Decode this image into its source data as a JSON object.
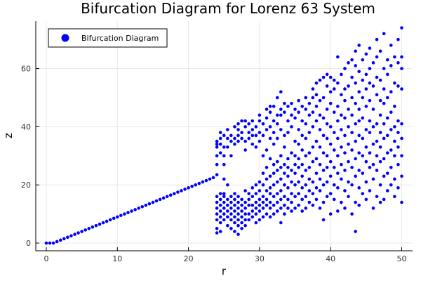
{
  "chart_data": {
    "type": "scatter",
    "title": "Bifurcation Diagram for Lorenz 63 System",
    "xlabel": "r",
    "ylabel": "z",
    "xlim": [
      -1.5,
      51.5
    ],
    "ylim": [
      -2.5,
      76
    ],
    "xticks": [
      "0",
      "10",
      "20",
      "30",
      "40",
      "50"
    ],
    "yticks": [
      "0",
      "20",
      "40",
      "60"
    ],
    "grid": true,
    "legend_position": "top-left",
    "series": [
      {
        "name": "Bifurcation Diagram",
        "color": "#0000ff",
        "marker": "circle",
        "linear_points": [
          [
            0,
            0
          ],
          [
            0.5,
            0
          ],
          [
            1,
            0
          ],
          [
            1.5,
            0.5
          ],
          [
            2,
            1
          ],
          [
            2.5,
            1.5
          ],
          [
            3,
            2
          ],
          [
            3.5,
            2.5
          ],
          [
            4,
            3
          ],
          [
            4.5,
            3.5
          ],
          [
            5,
            4
          ],
          [
            5.5,
            4.5
          ],
          [
            6,
            5
          ],
          [
            6.5,
            5.5
          ],
          [
            7,
            6
          ],
          [
            7.5,
            6.5
          ],
          [
            8,
            7
          ],
          [
            8.5,
            7.5
          ],
          [
            9,
            8
          ],
          [
            9.5,
            8.5
          ],
          [
            10,
            9
          ],
          [
            10.5,
            9.5
          ],
          [
            11,
            10
          ],
          [
            11.5,
            10.5
          ],
          [
            12,
            11
          ],
          [
            12.5,
            11.5
          ],
          [
            13,
            12
          ],
          [
            13.5,
            12.5
          ],
          [
            14,
            13
          ],
          [
            14.5,
            13.5
          ],
          [
            15,
            14
          ],
          [
            15.5,
            14.5
          ],
          [
            16,
            15
          ],
          [
            16.5,
            15.5
          ],
          [
            17,
            16
          ],
          [
            17.5,
            16.5
          ],
          [
            18,
            17
          ],
          [
            18.5,
            17.5
          ],
          [
            19,
            18
          ],
          [
            19.5,
            18.5
          ],
          [
            20,
            19
          ],
          [
            20.5,
            19.5
          ],
          [
            21,
            20
          ],
          [
            21.5,
            20.5
          ],
          [
            22,
            21
          ],
          [
            22.5,
            21.5
          ],
          [
            23,
            22
          ],
          [
            23.5,
            22.5
          ],
          [
            24,
            23.5
          ]
        ],
        "chaotic_points": [
          {
            "r": 24,
            "z": [
              3.5,
              5,
              8,
              10,
              12,
              14,
              16,
              30,
              33,
              34,
              35,
              27
            ]
          },
          {
            "r": 24.5,
            "z": [
              4,
              7,
              9,
              11,
              13,
              15,
              17,
              31,
              34,
              36,
              38
            ]
          },
          {
            "r": 25,
            "z": [
              8,
              10,
              12,
              14,
              16,
              17,
              22,
              27,
              30,
              33,
              37
            ]
          },
          {
            "r": 25.5,
            "z": [
              6,
              9,
              11,
              13,
              15,
              20,
              33,
              36,
              39
            ]
          },
          {
            "r": 26,
            "z": [
              5,
              8,
              10,
              12,
              14,
              16,
              30,
              35,
              37
            ]
          },
          {
            "r": 26.5,
            "z": [
              4,
              7,
              9,
              11,
              13,
              15,
              17,
              34,
              36,
              40
            ]
          },
          {
            "r": 27,
            "z": [
              3,
              6,
              8,
              10,
              12,
              14,
              16,
              35,
              37,
              39,
              41
            ]
          },
          {
            "r": 27.5,
            "z": [
              5,
              7,
              9,
              11,
              13,
              15,
              36,
              38,
              42
            ]
          },
          {
            "r": 28,
            "z": [
              6,
              8,
              10,
              12,
              14,
              18,
              32,
              35,
              40,
              42
            ]
          },
          {
            "r": 28.5,
            "z": [
              8,
              10,
              13,
              15,
              17,
              36,
              38,
              41
            ]
          },
          {
            "r": 29,
            "z": [
              9,
              11,
              13,
              16,
              19,
              34,
              37,
              39,
              42
            ]
          },
          {
            "r": 29.5,
            "z": [
              7,
              10,
              12,
              14,
              17,
              20,
              33,
              37,
              40
            ]
          },
          {
            "r": 30,
            "z": [
              8,
              11,
              13,
              15,
              18,
              21,
              35,
              38,
              42,
              44
            ]
          },
          {
            "r": 30.5,
            "z": [
              9,
              12,
              14,
              16,
              20,
              24,
              30,
              37,
              41
            ]
          },
          {
            "r": 31,
            "z": [
              10,
              13,
              15,
              18,
              22,
              26,
              32,
              39,
              43,
              46
            ]
          },
          {
            "r": 31.5,
            "z": [
              9,
              12,
              14,
              17,
              19,
              23,
              29,
              36,
              40,
              45,
              47
            ]
          },
          {
            "r": 32,
            "z": [
              10,
              13,
              16,
              20,
              24,
              27,
              34,
              38,
              42,
              47
            ]
          },
          {
            "r": 32.5,
            "z": [
              11,
              14,
              17,
              21,
              25,
              28,
              36,
              41,
              44,
              50
            ]
          },
          {
            "r": 33,
            "z": [
              7,
              12,
              15,
              18,
              22,
              26,
              30,
              39,
              44,
              46,
              52
            ]
          },
          {
            "r": 33.5,
            "z": [
              10,
              13,
              16,
              20,
              24,
              27,
              33,
              37,
              45,
              48
            ]
          },
          {
            "r": 34,
            "z": [
              12,
              15,
              19,
              23,
              26,
              29,
              38,
              42,
              47
            ]
          },
          {
            "r": 34.5,
            "z": [
              11,
              14,
              17,
              21,
              25,
              31,
              40,
              44,
              48
            ]
          },
          {
            "r": 35,
            "z": [
              12,
              16,
              20,
              24,
              27,
              30,
              35,
              43,
              46
            ]
          },
          {
            "r": 35.5,
            "z": [
              13,
              17,
              21,
              26,
              29,
              34,
              39,
              45,
              49
            ]
          },
          {
            "r": 36,
            "z": [
              11,
              15,
              19,
              23,
              27,
              32,
              37,
              42,
              47
            ]
          },
          {
            "r": 36.5,
            "z": [
              12,
              16,
              20,
              25,
              30,
              36,
              41,
              46,
              50
            ]
          },
          {
            "r": 37,
            "z": [
              14,
              18,
              22,
              26,
              31,
              38,
              44,
              48
            ]
          },
          {
            "r": 37.5,
            "z": [
              13,
              17,
              21,
              28,
              33,
              40,
              45,
              50,
              53
            ]
          },
          {
            "r": 38,
            "z": [
              15,
              19,
              24,
              29,
              35,
              42,
              47,
              51,
              55
            ]
          },
          {
            "r": 38.5,
            "z": [
              12,
              18,
              22,
              27,
              33,
              39,
              44,
              49,
              56
            ]
          },
          {
            "r": 39,
            "z": [
              8,
              14,
              20,
              25,
              31,
              37,
              43,
              50,
              57
            ]
          },
          {
            "r": 39.5,
            "z": [
              16,
              21,
              26,
              30,
              36,
              41,
              46,
              54,
              58
            ]
          },
          {
            "r": 40,
            "z": [
              10,
              17,
              23,
              28,
              34,
              40,
              48,
              52,
              57
            ]
          },
          {
            "r": 40.5,
            "z": [
              15,
              20,
              26,
              32,
              38,
              45,
              53,
              56
            ]
          },
          {
            "r": 41,
            "z": [
              11,
              19,
              24,
              30,
              36,
              42,
              47,
              55,
              64
            ]
          },
          {
            "r": 41.5,
            "z": [
              14,
              22,
              27,
              33,
              39,
              44,
              51,
              58
            ]
          },
          {
            "r": 42,
            "z": [
              12,
              18,
              25,
              31,
              37,
              43,
              49,
              53,
              60
            ]
          },
          {
            "r": 42.5,
            "z": [
              16,
              21,
              28,
              34,
              40,
              46,
              54,
              62
            ]
          },
          {
            "r": 43,
            "z": [
              10,
              20,
              26,
              32,
              38,
              44,
              50,
              57,
              63
            ]
          },
          {
            "r": 43.5,
            "z": [
              4,
              14,
              23,
              29,
              35,
              41,
              48,
              55,
              61,
              66
            ]
          },
          {
            "r": 44,
            "z": [
              13,
              19,
              25,
              31,
              37,
              42,
              46,
              52,
              59,
              68
            ]
          },
          {
            "r": 44.5,
            "z": [
              17,
              24,
              30,
              36,
              43,
              50,
              56,
              63
            ]
          },
          {
            "r": 45,
            "z": [
              15,
              21,
              28,
              33,
              39,
              47,
              53,
              58,
              65
            ]
          },
          {
            "r": 45.5,
            "z": [
              18,
              26,
              31,
              38,
              42,
              49,
              55,
              60,
              67
            ]
          },
          {
            "r": 46,
            "z": [
              12,
              22,
              27,
              34,
              40,
              46,
              54,
              62
            ]
          },
          {
            "r": 46.5,
            "z": [
              16,
              25,
              30,
              35,
              41,
              51,
              57,
              64,
              70
            ]
          },
          {
            "r": 47,
            "z": [
              14,
              20,
              28,
              33,
              38,
              44,
              49,
              56,
              66
            ]
          },
          {
            "r": 47.5,
            "z": [
              15,
              23,
              29,
              36,
              41,
              48,
              53,
              60,
              72
            ]
          },
          {
            "r": 48,
            "z": [
              18,
              24,
              31,
              37,
              43,
              50,
              58,
              63
            ]
          },
          {
            "r": 48.5,
            "z": [
              20,
              26,
              32,
              39,
              45,
              52,
              61,
              68
            ]
          },
          {
            "r": 49,
            "z": [
              16,
              22,
              30,
              35,
              40,
              47,
              55,
              64
            ]
          },
          {
            "r": 49.5,
            "z": [
              19,
              27,
              33,
              38,
              42,
              54,
              62,
              70
            ]
          },
          {
            "r": 50,
            "z": [
              14,
              23,
              30,
              36,
              41,
              53,
              60,
              64,
              74
            ]
          }
        ]
      }
    ]
  }
}
